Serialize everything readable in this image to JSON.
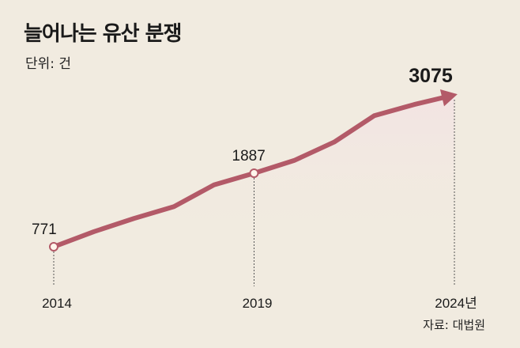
{
  "title": "늘어나는 유산 분쟁",
  "unit_label": "단위: 건",
  "source": "자료: 대법원",
  "colors": {
    "background": "#f1ebe0",
    "line": "#b35a68",
    "area_top": "#f3e3e3",
    "marker_fill": "#fff6ec",
    "text": "#1a1a1a"
  },
  "chart_data": {
    "type": "line",
    "title": "늘어나는 유산 분쟁",
    "ylabel": "단위: 건",
    "x": [
      "2014",
      "2015",
      "2016",
      "2017",
      "2018",
      "2019",
      "2020",
      "2021",
      "2022",
      "2023",
      "2024"
    ],
    "values": [
      771,
      1000,
      1200,
      1380,
      1710,
      1887,
      2080,
      2360,
      2760,
      2930,
      3075
    ],
    "tick_labels": [
      "2014",
      "2019",
      "2024년"
    ],
    "data_labels": [
      {
        "x": "2014",
        "value": "771"
      },
      {
        "x": "2019",
        "value": "1887"
      },
      {
        "x": "2024",
        "value": "3075"
      }
    ],
    "ylim": [
      771,
      3075
    ],
    "grid": false,
    "area_fill": true,
    "end_arrow": true
  }
}
